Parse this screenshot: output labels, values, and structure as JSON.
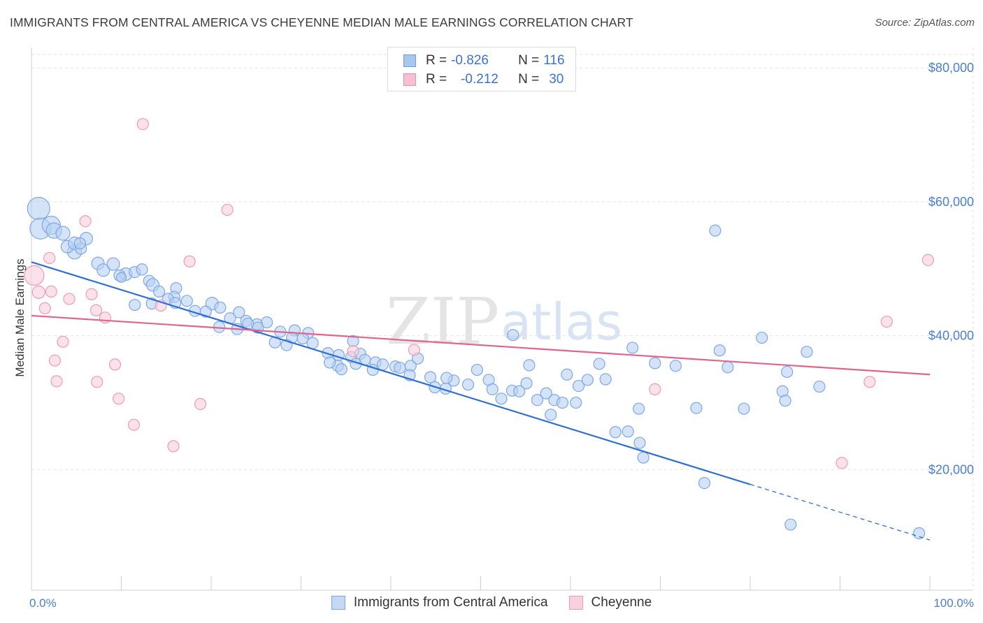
{
  "title": "IMMIGRANTS FROM CENTRAL AMERICA VS CHEYENNE MEDIAN MALE EARNINGS CORRELATION CHART",
  "source": "Source: ZipAtlas.com",
  "watermark": {
    "zip": "ZIP",
    "atlas": "atlas"
  },
  "legend_top": [
    {
      "r_label": "R =",
      "r_value": "-0.826",
      "n_label": "N =",
      "n_value": "116",
      "color": "#a9c6f0",
      "border": "#6f9ee0"
    },
    {
      "r_label": "R =",
      "r_value": "-0.212",
      "n_label": "N =",
      "n_value": "30",
      "color": "#f6c0d2",
      "border": "#e88fae"
    }
  ],
  "legend_bottom": [
    {
      "label": "Immigrants from Central America",
      "color": "#c5d9f4",
      "border": "#7da5e0"
    },
    {
      "label": "Cheyenne",
      "color": "#f9d0dd",
      "border": "#e99ab4"
    }
  ],
  "chart_data": {
    "type": "scatter",
    "title": "IMMIGRANTS FROM CENTRAL AMERICA VS CHEYENNE MEDIAN MALE EARNINGS CORRELATION CHART",
    "xlabel": "",
    "ylabel": "Median Male Earnings",
    "xlim": [
      0,
      100
    ],
    "ylim": [
      2000,
      82000
    ],
    "x_tick_labels": [
      "0.0%",
      "100.0%"
    ],
    "y_ticks": [
      20000,
      40000,
      60000,
      80000
    ],
    "y_tick_labels": [
      "$20,000",
      "$40,000",
      "$60,000",
      "$80,000"
    ],
    "grid": true,
    "series": [
      {
        "name": "Immigrants from Central America",
        "color": "#7ea8e4",
        "fill": "#b8d0f2",
        "trend": {
          "x0": 0,
          "y0": 51000,
          "x1": 80,
          "y1": 17800,
          "dash_to_x": 100,
          "dash_to_y": 9500,
          "color": "#2f6fd1"
        },
        "points": [
          [
            0.8,
            59000,
            16
          ],
          [
            1.0,
            56000,
            15
          ],
          [
            2.2,
            56500,
            13
          ],
          [
            2.5,
            55700,
            11
          ],
          [
            3.5,
            55300,
            10
          ],
          [
            4.8,
            52500,
            10
          ],
          [
            4.0,
            53300,
            9
          ],
          [
            4.8,
            53800,
            9
          ],
          [
            6.1,
            54500,
            9
          ],
          [
            5.5,
            53000,
            8
          ],
          [
            5.4,
            53800,
            8
          ],
          [
            7.4,
            50800,
            9
          ],
          [
            8.0,
            49800,
            9
          ],
          [
            9.1,
            50700,
            9
          ],
          [
            10.5,
            49200,
            9
          ],
          [
            11.5,
            49500,
            8
          ],
          [
            12.3,
            49900,
            8
          ],
          [
            9.8,
            49000,
            8
          ],
          [
            13.1,
            48200,
            8
          ],
          [
            13.5,
            47600,
            9
          ],
          [
            16.1,
            47100,
            8
          ],
          [
            10.0,
            48700,
            7
          ],
          [
            14.2,
            46600,
            8
          ],
          [
            15.9,
            45800,
            8
          ],
          [
            17.3,
            45200,
            8
          ],
          [
            15.2,
            45500,
            8
          ],
          [
            16.0,
            44900,
            8
          ],
          [
            18.2,
            43700,
            8
          ],
          [
            20.1,
            44800,
            9
          ],
          [
            21.0,
            44200,
            8
          ],
          [
            13.4,
            44800,
            8
          ],
          [
            11.5,
            44600,
            8
          ],
          [
            19.4,
            43600,
            8
          ],
          [
            22.1,
            42600,
            8
          ],
          [
            23.1,
            43500,
            8
          ],
          [
            23.9,
            42200,
            8
          ],
          [
            25.1,
            41700,
            8
          ],
          [
            26.2,
            42000,
            8
          ],
          [
            27.7,
            40600,
            8
          ],
          [
            25.2,
            41200,
            8
          ],
          [
            24.1,
            41800,
            8
          ],
          [
            20.9,
            41300,
            8
          ],
          [
            22.9,
            41000,
            8
          ],
          [
            29.3,
            40800,
            8
          ],
          [
            30.8,
            40400,
            8
          ],
          [
            29.0,
            39700,
            8
          ],
          [
            30.2,
            39600,
            8
          ],
          [
            27.1,
            39000,
            8
          ],
          [
            28.4,
            38600,
            8
          ],
          [
            31.3,
            38900,
            8
          ],
          [
            33.0,
            37400,
            8
          ],
          [
            35.6,
            36800,
            8
          ],
          [
            34.2,
            37100,
            8
          ],
          [
            35.8,
            39200,
            8
          ],
          [
            36.6,
            37300,
            8
          ],
          [
            37.1,
            36400,
            8
          ],
          [
            36.1,
            35800,
            8
          ],
          [
            38.3,
            36000,
            8
          ],
          [
            39.1,
            35700,
            8
          ],
          [
            38.0,
            34900,
            8
          ],
          [
            34.1,
            35500,
            8
          ],
          [
            34.5,
            35000,
            8
          ],
          [
            33.2,
            36000,
            8
          ],
          [
            40.5,
            35400,
            8
          ],
          [
            41.0,
            35200,
            8
          ],
          [
            42.2,
            35500,
            8
          ],
          [
            43.0,
            36600,
            8
          ],
          [
            42.1,
            34100,
            8
          ],
          [
            44.4,
            33800,
            8
          ],
          [
            44.9,
            32300,
            8
          ],
          [
            46.1,
            32100,
            8
          ],
          [
            47.0,
            33300,
            8
          ],
          [
            46.2,
            33700,
            8
          ],
          [
            48.6,
            32700,
            8
          ],
          [
            49.6,
            34900,
            8
          ],
          [
            50.9,
            33400,
            8
          ],
          [
            51.3,
            32000,
            8
          ],
          [
            52.3,
            30600,
            8
          ],
          [
            53.5,
            31800,
            8
          ],
          [
            54.3,
            31700,
            8
          ],
          [
            55.1,
            32900,
            8
          ],
          [
            53.6,
            40100,
            8
          ],
          [
            55.4,
            35600,
            8
          ],
          [
            56.3,
            30400,
            8
          ],
          [
            57.3,
            31400,
            8
          ],
          [
            58.2,
            30400,
            8
          ],
          [
            59.1,
            30000,
            8
          ],
          [
            60.6,
            30000,
            8
          ],
          [
            57.8,
            28200,
            8
          ],
          [
            59.6,
            34200,
            8
          ],
          [
            60.9,
            32500,
            8
          ],
          [
            61.9,
            33400,
            8
          ],
          [
            63.2,
            35800,
            8
          ],
          [
            63.9,
            33500,
            8
          ],
          [
            65.0,
            25600,
            8
          ],
          [
            66.4,
            25700,
            8
          ],
          [
            67.7,
            24000,
            8
          ],
          [
            68.1,
            21800,
            8
          ],
          [
            66.9,
            38200,
            8
          ],
          [
            67.6,
            29100,
            8
          ],
          [
            69.4,
            35900,
            8
          ],
          [
            71.7,
            35500,
            8
          ],
          [
            74.0,
            29200,
            8
          ],
          [
            74.9,
            18000,
            8
          ],
          [
            76.1,
            55700,
            8
          ],
          [
            76.6,
            37800,
            8
          ],
          [
            77.5,
            35300,
            8
          ],
          [
            79.3,
            29100,
            8
          ],
          [
            81.3,
            39700,
            8
          ],
          [
            83.6,
            31700,
            8
          ],
          [
            83.9,
            30300,
            8
          ],
          [
            84.1,
            34600,
            8
          ],
          [
            87.7,
            32400,
            8
          ],
          [
            84.5,
            11800,
            8
          ],
          [
            86.3,
            37600,
            8
          ],
          [
            98.8,
            10500,
            8
          ]
        ]
      },
      {
        "name": "Cheyenne",
        "color": "#ec9cb6",
        "fill": "#f8cfdc",
        "trend": {
          "x0": 0,
          "y0": 43000,
          "x1": 100,
          "y1": 34200,
          "color": "#e0648f"
        },
        "points": [
          [
            0.3,
            49000,
            14
          ],
          [
            0.8,
            46500,
            9
          ],
          [
            1.5,
            44100,
            8
          ],
          [
            2.0,
            51600,
            8
          ],
          [
            2.2,
            46600,
            8
          ],
          [
            2.6,
            36300,
            8
          ],
          [
            2.8,
            33200,
            8
          ],
          [
            3.5,
            39100,
            8
          ],
          [
            4.2,
            45500,
            8
          ],
          [
            6.0,
            57100,
            8
          ],
          [
            6.7,
            46200,
            8
          ],
          [
            7.2,
            43800,
            8
          ],
          [
            7.3,
            33100,
            8
          ],
          [
            8.2,
            42700,
            8
          ],
          [
            9.3,
            35700,
            8
          ],
          [
            9.7,
            30600,
            8
          ],
          [
            11.4,
            26700,
            8
          ],
          [
            12.4,
            71600,
            8
          ],
          [
            14.4,
            44500,
            8
          ],
          [
            15.8,
            23500,
            8
          ],
          [
            17.6,
            51100,
            8
          ],
          [
            18.8,
            29800,
            8
          ],
          [
            21.8,
            58800,
            8
          ],
          [
            35.8,
            37700,
            8
          ],
          [
            42.6,
            37900,
            8
          ],
          [
            69.4,
            32000,
            8
          ],
          [
            90.2,
            21000,
            8
          ],
          [
            93.3,
            33100,
            8
          ],
          [
            95.2,
            42100,
            8
          ],
          [
            99.8,
            51300,
            8
          ]
        ]
      }
    ]
  }
}
